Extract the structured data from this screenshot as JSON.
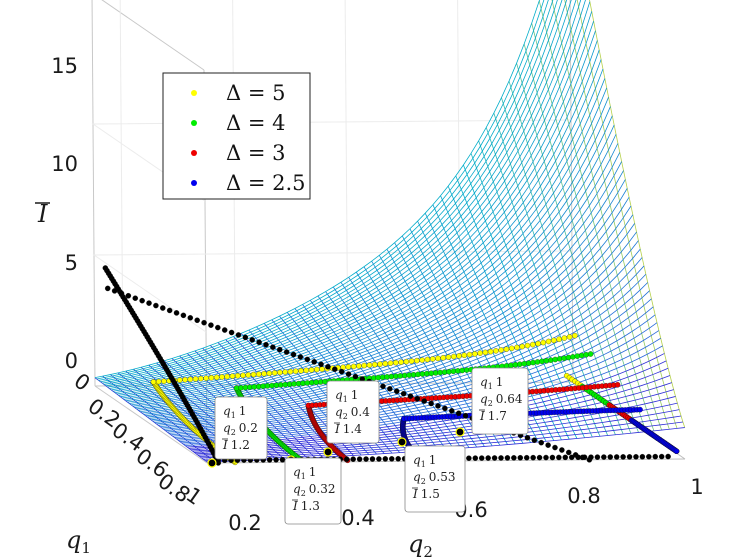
{
  "chart_data": {
    "type": "surface",
    "title": "",
    "xlabel": "q",
    "xlabel_sub": "2",
    "ylabel": "q",
    "ylabel_sub": "1",
    "zlabel": "I",
    "zlabel_bar": true,
    "xlim": [
      0.15,
      1.0
    ],
    "ylim": [
      0,
      1
    ],
    "zlim": [
      0,
      15
    ],
    "x_ticks": [
      "0.2",
      "0.4",
      "0.6",
      "0.8",
      "1"
    ],
    "y_ticks": [
      "0",
      "0.2",
      "0.4",
      "0.6",
      "0.8",
      "1"
    ],
    "z_ticks": [
      "0",
      "5",
      "10",
      "15"
    ],
    "grid": true,
    "legend_position": "top-left",
    "series": [
      {
        "name": "Δ = 5",
        "color": "#ffff00"
      },
      {
        "name": "Δ = 4",
        "color": "#00ee00"
      },
      {
        "name": "Δ = 3",
        "color": "#ee0000"
      },
      {
        "name": "Δ = 2.5",
        "color": "#0000ee"
      }
    ],
    "annotations": [
      {
        "q1": "1",
        "q2": "0.2",
        "I": "1.2"
      },
      {
        "q1": "1",
        "q2": "0.32",
        "I": "1.3"
      },
      {
        "q1": "1",
        "q2": "0.4",
        "I": "1.4"
      },
      {
        "q1": "1",
        "q2": "0.53",
        "I": "1.5"
      },
      {
        "q1": "1",
        "q2": "0.64",
        "I": "1.7"
      }
    ]
  }
}
